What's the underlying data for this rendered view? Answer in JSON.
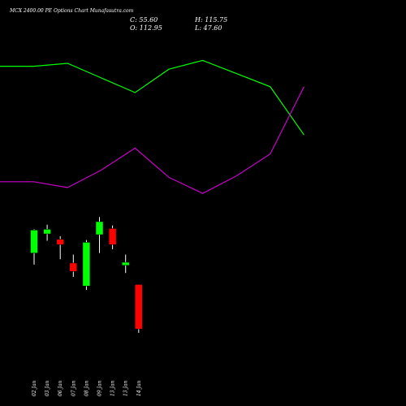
{
  "chart_data": {
    "type": "candlestick",
    "title": "MCX 2400.00 PE Options Chart Munafasutra.com",
    "summary": {
      "close_label": "C: 55.60",
      "open_label": "O: 112.95",
      "high_label": "H: 115.75",
      "low_label": "L: 47.60"
    },
    "categories": [
      "02 Jan",
      "03 Jan",
      "06 Jan",
      "07 Jan",
      "08 Jan",
      "09 Jan",
      "13 Jan",
      "13 Jan",
      "14 Jan"
    ],
    "candles": [
      {
        "date": "02 Jan",
        "open": 90.0,
        "high": 105.5,
        "low": 82.5,
        "close": 105.0
      },
      {
        "date": "03 Jan",
        "open": 102.5,
        "high": 108.5,
        "low": 98.0,
        "close": 105.5
      },
      {
        "date": "06 Jan",
        "open": 99.0,
        "high": 101.0,
        "low": 86.0,
        "close": 95.5
      },
      {
        "date": "07 Jan",
        "open": 83.5,
        "high": 89.0,
        "low": 74.5,
        "close": 78.0
      },
      {
        "date": "08 Jan",
        "open": 68.5,
        "high": 98.5,
        "low": 66.0,
        "close": 97.0
      },
      {
        "date": "09 Jan",
        "open": 102.0,
        "high": 113.5,
        "low": 90.0,
        "close": 110.5
      },
      {
        "date": "13 Jan",
        "open": 106.0,
        "high": 108.0,
        "low": 92.5,
        "close": 95.5
      },
      {
        "date": "13 Jan",
        "open": 82.0,
        "high": 89.0,
        "low": 77.0,
        "close": 84.0
      },
      {
        "date": "14 Jan",
        "open": 69.5,
        "high": 69.5,
        "low": 38.0,
        "close": 40.5
      }
    ],
    "series": [
      {
        "color": "#00ff00",
        "type": "line",
        "points": [
          {
            "x": 0,
            "y": 44.0
          },
          {
            "x": 1,
            "y": 44.0
          },
          {
            "x": 2,
            "y": 45.0
          },
          {
            "x": 3,
            "y": 40.0
          },
          {
            "x": 4,
            "y": 35.0
          },
          {
            "x": 5,
            "y": 43.0
          },
          {
            "x": 6,
            "y": 46.0
          },
          {
            "x": 7,
            "y": 41.5
          },
          {
            "x": 8,
            "y": 37.0
          },
          {
            "x": 9,
            "y": 20.5
          }
        ]
      },
      {
        "color": "#cc00cc",
        "type": "line",
        "points": [
          {
            "x": 0,
            "y": 4.5
          },
          {
            "x": 1,
            "y": 4.5
          },
          {
            "x": 2,
            "y": 2.5
          },
          {
            "x": 3,
            "y": 8.5
          },
          {
            "x": 4,
            "y": 16.0
          },
          {
            "x": 5,
            "y": 6.0
          },
          {
            "x": 6,
            "y": 0.5
          },
          {
            "x": 7,
            "y": 6.5
          },
          {
            "x": 8,
            "y": 14.0
          },
          {
            "x": 9,
            "y": 37.0
          }
        ]
      }
    ],
    "colors": {
      "up": "#00ff00",
      "down": "#ff0000",
      "background": "#000000",
      "text": "#ffffff"
    },
    "grid": false,
    "legend": "none"
  }
}
